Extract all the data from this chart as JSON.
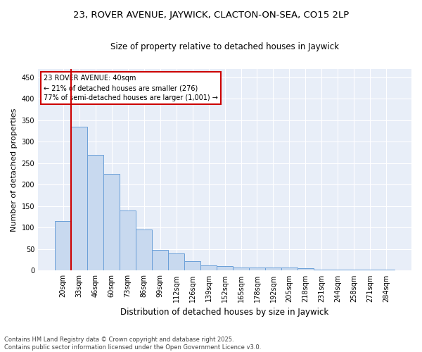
{
  "title1": "23, ROVER AVENUE, JAYWICK, CLACTON-ON-SEA, CO15 2LP",
  "title2": "Size of property relative to detached houses in Jaywick",
  "xlabel": "Distribution of detached houses by size in Jaywick",
  "ylabel": "Number of detached properties",
  "categories": [
    "20sqm",
    "33sqm",
    "46sqm",
    "60sqm",
    "73sqm",
    "86sqm",
    "99sqm",
    "112sqm",
    "126sqm",
    "139sqm",
    "152sqm",
    "165sqm",
    "178sqm",
    "192sqm",
    "205sqm",
    "218sqm",
    "231sqm",
    "244sqm",
    "258sqm",
    "271sqm",
    "284sqm"
  ],
  "values": [
    115,
    335,
    270,
    225,
    140,
    95,
    48,
    40,
    22,
    13,
    10,
    8,
    8,
    8,
    8,
    5,
    2,
    2,
    2,
    2,
    2
  ],
  "bar_color": "#c8d9ef",
  "bar_edge_color": "#6a9fd8",
  "annotation_title": "23 ROVER AVENUE: 40sqm",
  "annotation_line1": "← 21% of detached houses are smaller (276)",
  "annotation_line2": "77% of semi-detached houses are larger (1,001) →",
  "annotation_box_color": "#ffffff",
  "annotation_box_edge_color": "#cc0000",
  "footer1": "Contains HM Land Registry data © Crown copyright and database right 2025.",
  "footer2": "Contains public sector information licensed under the Open Government Licence v3.0.",
  "background_color": "#e8eef8",
  "grid_color": "#ffffff",
  "ylim": [
    0,
    470
  ],
  "yticks": [
    0,
    50,
    100,
    150,
    200,
    250,
    300,
    350,
    400,
    450
  ],
  "red_line_x": 0.5,
  "title1_fontsize": 9.5,
  "title2_fontsize": 8.5,
  "ylabel_fontsize": 8,
  "xlabel_fontsize": 8.5,
  "tick_fontsize": 7,
  "annot_fontsize": 7,
  "footer_fontsize": 6
}
